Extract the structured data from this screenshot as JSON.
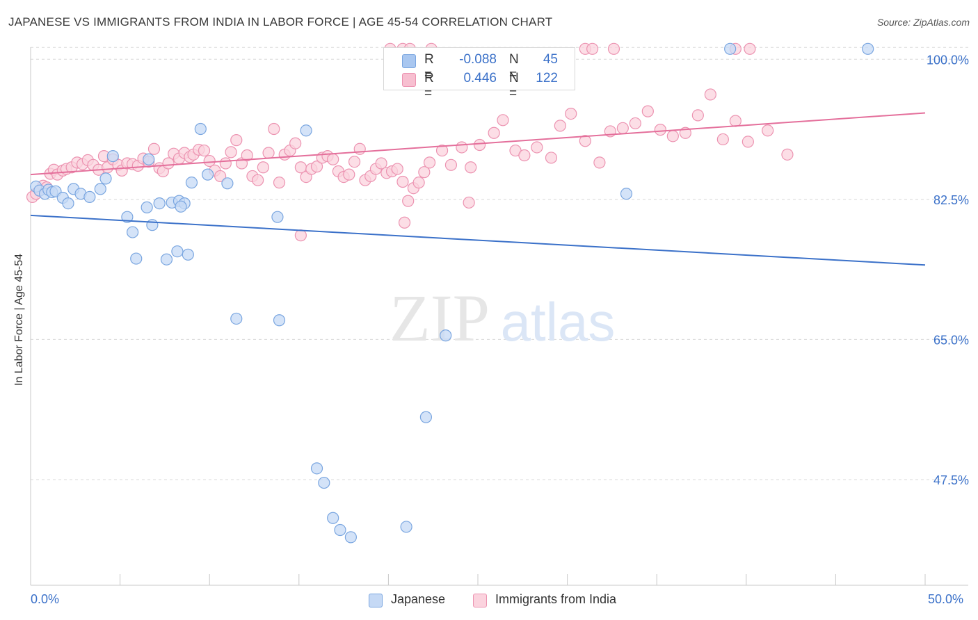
{
  "title": "JAPANESE VS IMMIGRANTS FROM INDIA IN LABOR FORCE | AGE 45-54 CORRELATION CHART",
  "source": "Source: ZipAtlas.com",
  "watermark": {
    "zip": "ZIP",
    "atlas": "atlas"
  },
  "legend_top": [
    {
      "r_label": "R =",
      "r_value": "-0.088",
      "n_label": "N =",
      "n_value": "45",
      "color": "#a9c7f0",
      "border": "#7aa6e0"
    },
    {
      "r_label": "R =",
      "r_value": "0.446",
      "n_label": "N =",
      "n_value": "122",
      "color": "#f7bfd0",
      "border": "#ec93b1"
    }
  ],
  "legend_bottom": [
    {
      "label": "Japanese",
      "color": "#c5d9f5",
      "border": "#7aa6e0"
    },
    {
      "label": "Immigrants from India",
      "color": "#fbd3de",
      "border": "#ec93b1"
    }
  ],
  "colors": {
    "blue": "#3b71c9",
    "pink": "#e46f9b",
    "grid": "#d8d8d8",
    "axis": "#c8c8c8"
  },
  "chart_data": {
    "type": "scatter",
    "ylabel": "In Labor Force | Age 45-54",
    "x_tick_labels": [
      "0.0%",
      "50.0%"
    ],
    "y_tick_labels": [
      "100.0%",
      "82.5%",
      "65.0%",
      "47.5%"
    ],
    "y_ticks": [
      100.0,
      82.5,
      65.0,
      47.5
    ],
    "xlim": [
      0,
      50
    ],
    "ylim": [
      34.3,
      101.5
    ],
    "grid": true,
    "legend_placement": "top-center",
    "series": [
      {
        "name": "Japanese",
        "color": "#7aa6e0",
        "fill": "#c5d9f5",
        "trend": {
          "x": [
            0,
            50
          ],
          "y": [
            80.5,
            74.3
          ]
        },
        "points": [
          [
            0.3,
            84.1
          ],
          [
            0.5,
            83.6
          ],
          [
            0.8,
            83.2
          ],
          [
            1.0,
            83.7
          ],
          [
            1.2,
            83.4
          ],
          [
            1.4,
            83.5
          ],
          [
            1.8,
            82.7
          ],
          [
            2.1,
            82.0
          ],
          [
            2.4,
            83.8
          ],
          [
            2.8,
            83.2
          ],
          [
            3.3,
            82.8
          ],
          [
            3.9,
            83.8
          ],
          [
            4.2,
            85.1
          ],
          [
            4.6,
            87.9
          ],
          [
            5.4,
            80.3
          ],
          [
            5.7,
            78.4
          ],
          [
            5.9,
            75.1
          ],
          [
            6.5,
            81.5
          ],
          [
            6.6,
            87.5
          ],
          [
            6.8,
            79.3
          ],
          [
            7.2,
            82.0
          ],
          [
            7.9,
            82.1
          ],
          [
            8.3,
            82.3
          ],
          [
            7.6,
            75.0
          ],
          [
            8.8,
            75.6
          ],
          [
            8.2,
            76.0
          ],
          [
            8.6,
            82.0
          ],
          [
            8.4,
            81.6
          ],
          [
            9.0,
            84.6
          ],
          [
            9.9,
            85.6
          ],
          [
            9.5,
            91.3
          ],
          [
            11.0,
            84.5
          ],
          [
            11.5,
            67.6
          ],
          [
            13.9,
            67.4
          ],
          [
            13.8,
            80.3
          ],
          [
            15.4,
            91.1
          ],
          [
            16.0,
            48.9
          ],
          [
            16.4,
            47.1
          ],
          [
            17.3,
            41.2
          ],
          [
            17.9,
            40.3
          ],
          [
            16.9,
            42.7
          ],
          [
            21.0,
            41.6
          ],
          [
            22.1,
            55.3
          ],
          [
            23.2,
            65.5
          ],
          [
            33.3,
            83.2
          ],
          [
            39.1,
            101.3
          ],
          [
            46.8,
            101.3
          ]
        ]
      },
      {
        "name": "Immigrants from India",
        "color": "#ec93b1",
        "fill": "#fbd3de",
        "trend": {
          "x": [
            0,
            50
          ],
          "y": [
            85.6,
            93.3
          ]
        },
        "points": [
          [
            0.1,
            82.8
          ],
          [
            0.3,
            83.2
          ],
          [
            0.5,
            83.6
          ],
          [
            0.7,
            84.2
          ],
          [
            0.9,
            84.0
          ],
          [
            1.1,
            85.7
          ],
          [
            1.3,
            86.2
          ],
          [
            1.5,
            85.6
          ],
          [
            1.8,
            86.1
          ],
          [
            2.0,
            86.3
          ],
          [
            2.3,
            86.5
          ],
          [
            2.6,
            87.1
          ],
          [
            2.9,
            86.9
          ],
          [
            3.2,
            87.4
          ],
          [
            3.5,
            86.8
          ],
          [
            3.8,
            86.2
          ],
          [
            4.1,
            87.9
          ],
          [
            4.3,
            86.5
          ],
          [
            4.6,
            87.5
          ],
          [
            4.9,
            86.8
          ],
          [
            5.1,
            86.1
          ],
          [
            5.4,
            87.0
          ],
          [
            5.7,
            86.9
          ],
          [
            6.0,
            86.7
          ],
          [
            6.3,
            87.6
          ],
          [
            6.6,
            87.2
          ],
          [
            6.9,
            88.8
          ],
          [
            7.2,
            86.4
          ],
          [
            7.4,
            86.0
          ],
          [
            7.7,
            87.0
          ],
          [
            8.0,
            88.2
          ],
          [
            8.3,
            87.6
          ],
          [
            8.6,
            88.3
          ],
          [
            8.9,
            87.8
          ],
          [
            9.1,
            88.1
          ],
          [
            9.4,
            88.7
          ],
          [
            9.7,
            88.6
          ],
          [
            10.0,
            87.3
          ],
          [
            10.3,
            86.1
          ],
          [
            10.6,
            85.4
          ],
          [
            10.9,
            87.0
          ],
          [
            11.2,
            88.4
          ],
          [
            11.5,
            89.9
          ],
          [
            11.8,
            87.0
          ],
          [
            12.1,
            88.0
          ],
          [
            12.4,
            85.4
          ],
          [
            12.7,
            84.9
          ],
          [
            13.0,
            86.5
          ],
          [
            13.3,
            88.3
          ],
          [
            13.6,
            91.3
          ],
          [
            13.9,
            84.6
          ],
          [
            14.2,
            88.1
          ],
          [
            14.5,
            88.6
          ],
          [
            14.8,
            89.5
          ],
          [
            15.1,
            86.5
          ],
          [
            15.4,
            85.3
          ],
          [
            15.7,
            86.3
          ],
          [
            16.0,
            86.6
          ],
          [
            16.3,
            87.7
          ],
          [
            16.6,
            87.9
          ],
          [
            16.9,
            87.5
          ],
          [
            17.2,
            86.0
          ],
          [
            17.5,
            85.3
          ],
          [
            17.8,
            85.6
          ],
          [
            18.1,
            87.2
          ],
          [
            18.4,
            88.8
          ],
          [
            18.7,
            84.9
          ],
          [
            19.0,
            85.4
          ],
          [
            19.3,
            86.3
          ],
          [
            19.6,
            87.0
          ],
          [
            19.9,
            85.8
          ],
          [
            20.2,
            86.0
          ],
          [
            20.5,
            86.3
          ],
          [
            20.8,
            84.7
          ],
          [
            21.1,
            82.3
          ],
          [
            21.4,
            83.9
          ],
          [
            21.7,
            84.6
          ],
          [
            22.0,
            85.9
          ],
          [
            22.3,
            87.1
          ],
          [
            23.0,
            88.6
          ],
          [
            23.5,
            86.8
          ],
          [
            24.1,
            89.0
          ],
          [
            24.6,
            86.5
          ],
          [
            25.1,
            89.3
          ],
          [
            25.9,
            90.8
          ],
          [
            26.4,
            92.4
          ],
          [
            27.1,
            88.6
          ],
          [
            27.6,
            88.0
          ],
          [
            28.3,
            89.0
          ],
          [
            29.1,
            87.7
          ],
          [
            29.6,
            91.7
          ],
          [
            30.2,
            93.2
          ],
          [
            31.0,
            89.8
          ],
          [
            31.8,
            87.1
          ],
          [
            32.4,
            91.0
          ],
          [
            33.1,
            91.4
          ],
          [
            33.8,
            92.0
          ],
          [
            34.5,
            93.5
          ],
          [
            35.2,
            91.2
          ],
          [
            35.9,
            90.4
          ],
          [
            36.6,
            90.8
          ],
          [
            37.3,
            93.0
          ],
          [
            38.0,
            95.6
          ],
          [
            38.7,
            90.0
          ],
          [
            39.4,
            92.3
          ],
          [
            40.1,
            89.7
          ],
          [
            41.2,
            91.1
          ],
          [
            42.3,
            88.1
          ],
          [
            20.1,
            101.3
          ],
          [
            20.8,
            101.3
          ],
          [
            21.2,
            101.3
          ],
          [
            22.4,
            101.3
          ],
          [
            31.0,
            101.3
          ],
          [
            31.4,
            101.3
          ],
          [
            32.6,
            101.3
          ],
          [
            39.4,
            101.3
          ],
          [
            40.2,
            101.3
          ],
          [
            24.5,
            82.1
          ],
          [
            20.9,
            79.6
          ],
          [
            15.1,
            78.0
          ]
        ]
      }
    ]
  }
}
